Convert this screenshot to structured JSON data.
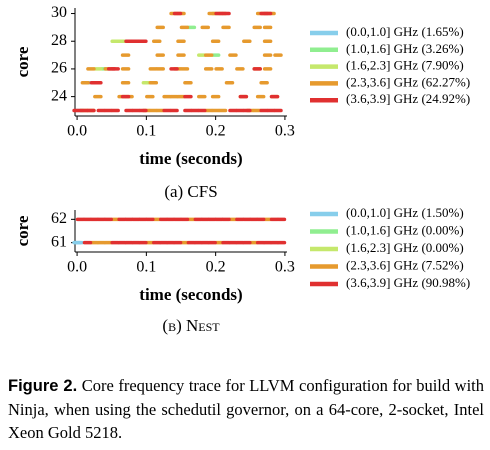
{
  "chart_data": [
    {
      "type": "scatter",
      "subcaption": "(a) CFS",
      "xlabel": "time (seconds)",
      "ylabel": "core",
      "xlim": [
        -0.003,
        0.303
      ],
      "ylim": [
        22.6,
        30.4
      ],
      "xticks": [
        {
          "value": 0,
          "label": "0.0"
        },
        {
          "value": 0.1,
          "label": "0.1"
        },
        {
          "value": 0.2,
          "label": "0.2"
        },
        {
          "value": 0.3,
          "label": "0.3"
        }
      ],
      "yticks": [
        24,
        26,
        28,
        30
      ],
      "legend": "right",
      "series": [
        {
          "name": "(0.0,1.0] GHz (1.65%)",
          "color": "#87ceeb",
          "x": [
            0.014,
            0.004
          ],
          "values": [
            25,
            23
          ]
        },
        {
          "name": "(1.0,1.6] GHz (3.26%)",
          "color": "#90ee90",
          "x": [
            0.165,
            0.2,
            0.04
          ],
          "values": [
            29,
            27,
            26
          ]
        },
        {
          "name": "(1.6,2.3] GHz (7.90%)",
          "color": "#c5e86c",
          "x": [
            0.055,
            0.06,
            0.065,
            0.2,
            0.18,
            0.1,
            0.03
          ],
          "values": [
            28,
            28,
            28,
            30,
            27,
            25,
            26
          ]
        },
        {
          "name": "(2.3,3.6] GHz (62.27%)",
          "color": "#e69a2e",
          "x": [
            0.01,
            0.02,
            0.1,
            0.11,
            0.12,
            0.19,
            0.2,
            0.21,
            0.25,
            0.26,
            0.03,
            0.065,
            0.075,
            0.105,
            0.13,
            0.14,
            0.15,
            0.18,
            0.2,
            0.24,
            0.265,
            0.285,
            0.012,
            0.07,
            0.11,
            0.16,
            0.22,
            0.27,
            0.02,
            0.045,
            0.07,
            0.11,
            0.12,
            0.145,
            0.155,
            0.19,
            0.205,
            0.235,
            0.26,
            0.275,
            0.07,
            0.12,
            0.15,
            0.19,
            0.225,
            0.275,
            0.29,
            0.08,
            0.115,
            0.15,
            0.2,
            0.245,
            0.275,
            0.12,
            0.155,
            0.185,
            0.215,
            0.26,
            0.275,
            0.14,
            0.15,
            0.195,
            0.21,
            0.265,
            0.28
          ],
          "values": [
            23,
            23,
            23,
            23,
            23,
            23,
            23,
            23,
            23,
            23,
            24,
            24,
            24,
            24,
            24,
            24,
            24,
            24,
            24,
            24,
            24,
            24,
            25,
            25,
            25,
            25,
            25,
            25,
            26,
            26,
            26,
            26,
            26,
            26,
            26,
            26,
            26,
            26,
            26,
            26,
            27,
            27,
            27,
            27,
            27,
            27,
            27,
            28,
            28,
            28,
            28,
            28,
            28,
            29,
            29,
            29,
            29,
            29,
            29,
            30,
            30,
            30,
            30,
            30,
            30
          ]
        },
        {
          "name": "(3.6,3.9] GHz (24.92%)",
          "color": "#e03030",
          "x": [
            0.0,
            0.01,
            0.02,
            0.035,
            0.045,
            0.055,
            0.075,
            0.085,
            0.095,
            0.13,
            0.14,
            0.16,
            0.17,
            0.18,
            0.225,
            0.235,
            0.245,
            0.27,
            0.28,
            0.29,
            0.07,
            0.16,
            0.24,
            0.285,
            0.025,
            0.03,
            0.05,
            0.055,
            0.14,
            0.26,
            0.075,
            0.085,
            0.095,
            0.145,
            0.205,
            0.215,
            0.27,
            0.275
          ],
          "values": [
            23,
            23,
            23,
            23,
            23,
            23,
            23,
            23,
            23,
            23,
            23,
            23,
            23,
            23,
            23,
            23,
            23,
            23,
            23,
            23,
            24,
            24,
            24,
            24,
            25,
            25,
            26,
            26,
            26,
            26,
            28,
            28,
            28,
            30,
            30,
            30,
            30,
            30
          ]
        }
      ]
    },
    {
      "type": "scatter",
      "subcaption": "(b) Nest",
      "xlabel": "time (seconds)",
      "ylabel": "core",
      "xlim": [
        -0.003,
        0.303
      ],
      "ylim": [
        60.6,
        62.4
      ],
      "xticks": [
        {
          "value": 0,
          "label": "0.0"
        },
        {
          "value": 0.1,
          "label": "0.1"
        },
        {
          "value": 0.2,
          "label": "0.2"
        },
        {
          "value": 0.3,
          "label": "0.3"
        }
      ],
      "yticks": [
        61,
        62
      ],
      "legend": "right",
      "series": [
        {
          "name": "(0.0,1.0] GHz (1.50%)",
          "color": "#87ceeb",
          "x": [
            0.0,
            0.003
          ],
          "values": [
            61,
            61
          ]
        },
        {
          "name": "(1.0,1.6] GHz (0.00%)",
          "color": "#90ee90",
          "x": [],
          "values": []
        },
        {
          "name": "(1.6,2.3] GHz (0.00%)",
          "color": "#c5e86c",
          "x": [],
          "values": []
        },
        {
          "name": "(2.3,3.6] GHz (7.52%)",
          "color": "#e69a2e",
          "x": [
            0.055,
            0.115,
            0.165,
            0.225,
            0.275,
            0.025,
            0.035,
            0.045,
            0.105,
            0.155,
            0.205,
            0.255
          ],
          "values": [
            62,
            62,
            62,
            62,
            62,
            61,
            61,
            61,
            61,
            61,
            61,
            61
          ]
        },
        {
          "name": "(3.6,3.9] GHz (90.98%)",
          "color": "#e03030",
          "x": [
            0.005,
            0.015,
            0.025,
            0.035,
            0.045,
            0.065,
            0.075,
            0.085,
            0.095,
            0.105,
            0.125,
            0.135,
            0.145,
            0.155,
            0.175,
            0.185,
            0.195,
            0.205,
            0.215,
            0.235,
            0.245,
            0.255,
            0.265,
            0.285,
            0.295,
            0.015,
            0.055,
            0.065,
            0.075,
            0.085,
            0.095,
            0.115,
            0.125,
            0.135,
            0.145,
            0.165,
            0.175,
            0.185,
            0.195,
            0.215,
            0.225,
            0.235,
            0.245,
            0.265,
            0.275,
            0.285,
            0.295
          ],
          "values": [
            62,
            62,
            62,
            62,
            62,
            62,
            62,
            62,
            62,
            62,
            62,
            62,
            62,
            62,
            62,
            62,
            62,
            62,
            62,
            62,
            62,
            62,
            62,
            62,
            62,
            61,
            61,
            61,
            61,
            61,
            61,
            61,
            61,
            61,
            61,
            61,
            61,
            61,
            61,
            61,
            61,
            61,
            61,
            61,
            61,
            61,
            61
          ]
        }
      ]
    }
  ],
  "caption": {
    "label": "Figure 2.",
    "text": "Core frequency trace for LLVM configuration for build with Ninja, when using the schedutil governor, on a 64-core, 2-socket, Intel Xeon Gold 5218."
  }
}
